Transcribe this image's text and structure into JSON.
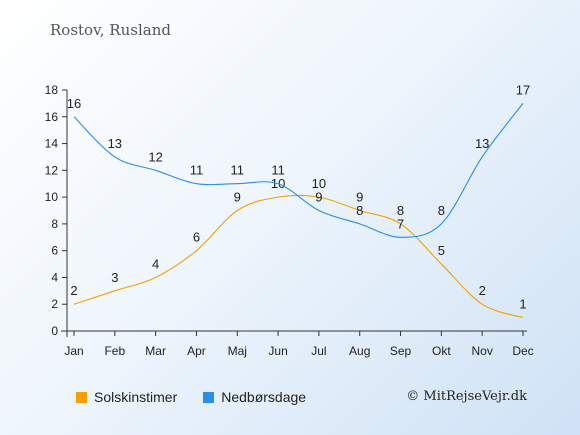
{
  "chart_data": {
    "type": "line",
    "title": "Rostov, Rusland",
    "categories": [
      "Jan",
      "Feb",
      "Mar",
      "Apr",
      "Maj",
      "Jun",
      "Jul",
      "Aug",
      "Sep",
      "Okt",
      "Nov",
      "Dec"
    ],
    "series": [
      {
        "name": "Solskinstimer",
        "color": "#f5a000",
        "values": [
          2,
          3,
          4,
          6,
          9,
          10,
          10,
          9,
          8,
          5,
          2,
          1
        ]
      },
      {
        "name": "Nedbørsdage",
        "color": "#2a8de6",
        "values": [
          16,
          13,
          12,
          11,
          11,
          11,
          9,
          8,
          7,
          8,
          13,
          17
        ]
      }
    ],
    "ylim": [
      0,
      18
    ],
    "yticks": [
      0,
      2,
      4,
      6,
      8,
      10,
      12,
      14,
      16,
      18
    ],
    "grid": false,
    "legend_position": "bottom-left"
  },
  "credit": "© MitRejseVejr.dk"
}
